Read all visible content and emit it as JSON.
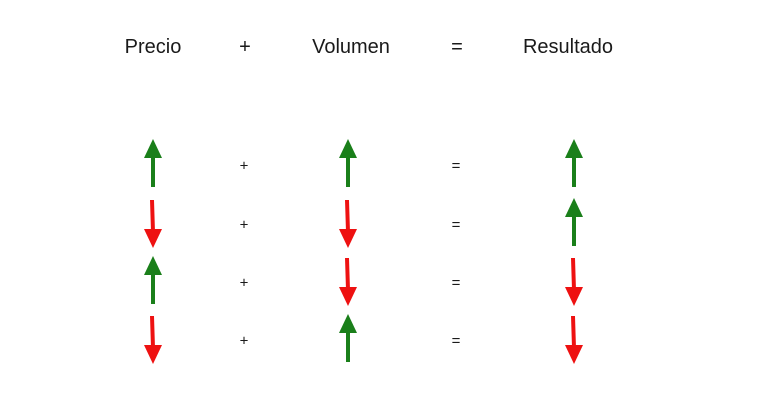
{
  "headers": {
    "price": "Precio",
    "plus": "+",
    "volume": "Volumen",
    "equals": "=",
    "result": "Resultado"
  },
  "colors": {
    "up": "#1a7f1a",
    "down": "#ee1111"
  },
  "rows": [
    {
      "price": "up-arrow-icon",
      "plus": "+",
      "volume": "up-arrow-icon",
      "equals": "=",
      "result": "up-arrow-icon"
    },
    {
      "price": "down-arrow-icon",
      "plus": "+",
      "volume": "down-arrow-icon",
      "equals": "=",
      "result": "up-arrow-icon"
    },
    {
      "price": "up-arrow-icon",
      "plus": "+",
      "volume": "down-arrow-icon",
      "equals": "=",
      "result": "down-arrow-icon"
    },
    {
      "price": "down-arrow-icon",
      "plus": "+",
      "volume": "up-arrow-icon",
      "equals": "=",
      "result": "down-arrow-icon"
    }
  ]
}
